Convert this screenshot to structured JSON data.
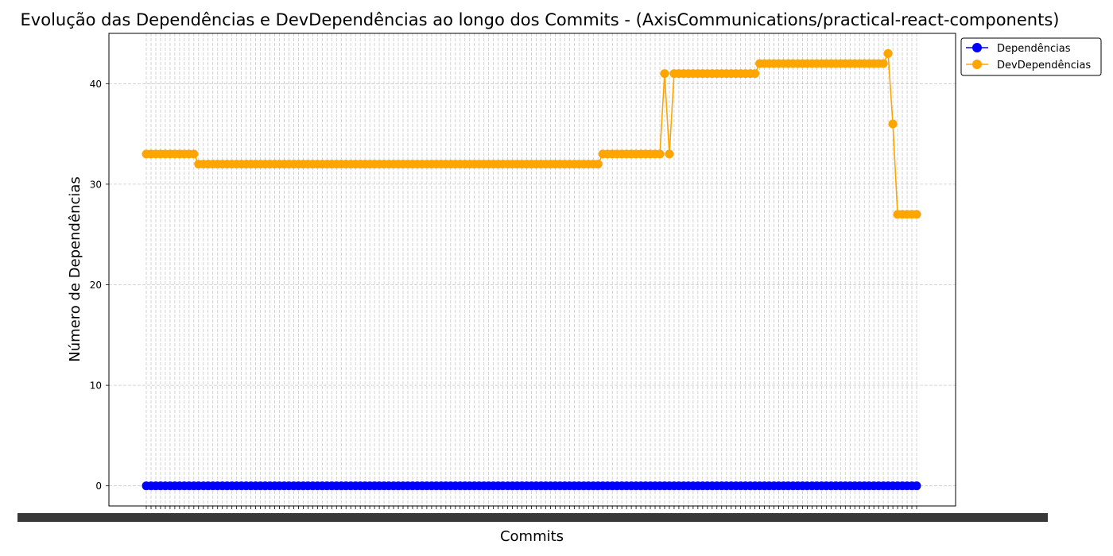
{
  "chart_data": {
    "type": "line",
    "title": "Evolução das Dependências e DevDependências ao longo dos Commits - (AxisCommunications/practical-react-components)",
    "xlabel": "Commits",
    "ylabel": "Número de Dependências",
    "ylim": [
      -2,
      45
    ],
    "yticks": [
      0,
      10,
      20,
      30,
      40
    ],
    "grid": true,
    "legend_position": "outside-top-right",
    "x_tick_labels_overlapping": true,
    "n_commits": 163,
    "series": [
      {
        "name": "Dependências",
        "color": "#0000ff",
        "runs": [
          [
            163,
            0
          ]
        ]
      },
      {
        "name": "DevDependências",
        "color": "#ffa500",
        "runs": [
          [
            11,
            33
          ],
          [
            85,
            32
          ],
          [
            13,
            33
          ],
          [
            1,
            41
          ],
          [
            1,
            33
          ],
          [
            18,
            41
          ],
          [
            27,
            42
          ],
          [
            1,
            43
          ],
          [
            1,
            36
          ],
          [
            5,
            27
          ]
        ]
      }
    ]
  }
}
